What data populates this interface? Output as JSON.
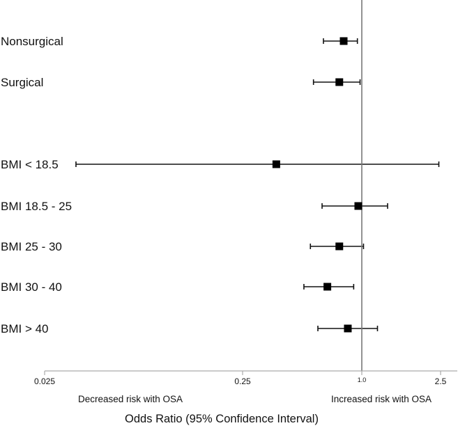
{
  "chart_data": {
    "type": "forest",
    "title": "",
    "xlabel": "Odds Ratio (95% Confidence Interval)",
    "x_scale": "log",
    "xlim": [
      0.025,
      2.9
    ],
    "reference_value": 1.0,
    "grid": false,
    "x_ticks": [
      {
        "value": 0.025,
        "label": "0.025"
      },
      {
        "value": 0.25,
        "label": "0.25"
      },
      {
        "value": 1.0,
        "label": "1.0"
      },
      {
        "value": 2.5,
        "label": "2.5"
      }
    ],
    "direction_labels": {
      "left": "Decreased risk with OSA",
      "right": "Increased risk with OSA"
    },
    "rows": [
      {
        "label": "Nonsurgical",
        "or": 0.81,
        "lower": 0.64,
        "upper": 0.95
      },
      {
        "label": "Surgical",
        "or": 0.77,
        "lower": 0.57,
        "upper": 0.98
      },
      {
        "label": "",
        "spacer": true
      },
      {
        "label": "BMI < 18.5",
        "or": 0.37,
        "lower": 0.036,
        "upper": 2.45
      },
      {
        "label": "BMI 18.5 - 25",
        "or": 0.96,
        "lower": 0.63,
        "upper": 1.35
      },
      {
        "label": "BMI 25 - 30",
        "or": 0.77,
        "lower": 0.55,
        "upper": 1.02
      },
      {
        "label": "BMI 30 - 40",
        "or": 0.67,
        "lower": 0.51,
        "upper": 0.91
      },
      {
        "label": "BMI > 40",
        "or": 0.85,
        "lower": 0.6,
        "upper": 1.2
      }
    ]
  }
}
